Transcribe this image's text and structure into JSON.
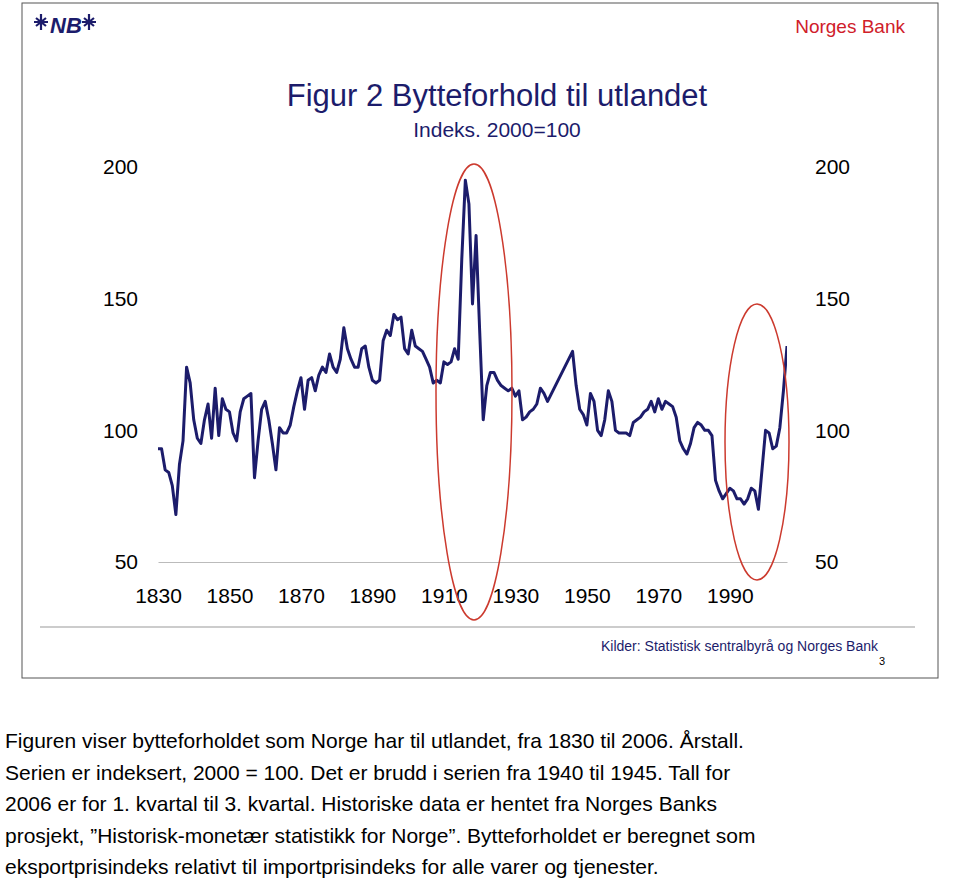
{
  "chart_data": {
    "type": "line",
    "logo": "NB",
    "publisher": "Norges Bank",
    "title": "Figur 2 Bytteforhold til utlandet",
    "subtitle": "Indeks. 2000=100",
    "source": "Kilder: Statistisk sentralbyrå og Norges Bank",
    "page_number": 3,
    "caption": [
      "Figuren viser bytteforholdet som Norge har til utlandet, fra 1830 til 2006. Årstall.",
      "Serien er indeksert, 2000 = 100. Det er brudd i serien fra 1940 til 1945. Tall for",
      "2006 er for 1. kvartal til 3. kvartal. Historiske data er hentet fra Norges Banks",
      "prosjekt, ”Historisk-monetær statistikk for Norge”. Bytteforholdet er beregnet som",
      "eksportprisindeks relativt til importprisindeks for alle varer og tjenester."
    ],
    "color": "#1c1c6b",
    "x": [
      1830,
      1831,
      1832,
      1833,
      1834,
      1835,
      1836,
      1837,
      1838,
      1839,
      1840,
      1841,
      1842,
      1843,
      1844,
      1845,
      1846,
      1847,
      1848,
      1849,
      1850,
      1851,
      1852,
      1853,
      1854,
      1855,
      1856,
      1857,
      1858,
      1859,
      1860,
      1861,
      1862,
      1863,
      1864,
      1865,
      1866,
      1867,
      1868,
      1869,
      1870,
      1871,
      1872,
      1873,
      1874,
      1875,
      1876,
      1877,
      1878,
      1879,
      1880,
      1881,
      1882,
      1883,
      1884,
      1885,
      1886,
      1887,
      1888,
      1889,
      1890,
      1891,
      1892,
      1893,
      1894,
      1895,
      1896,
      1897,
      1898,
      1899,
      1900,
      1901,
      1902,
      1903,
      1904,
      1905,
      1906,
      1907,
      1908,
      1909,
      1910,
      1911,
      1912,
      1913,
      1914,
      1915,
      1916,
      1917,
      1918,
      1919,
      1920,
      1921,
      1922,
      1923,
      1924,
      1925,
      1926,
      1927,
      1928,
      1929,
      1930,
      1931,
      1932,
      1933,
      1934,
      1935,
      1936,
      1937,
      1938,
      1939,
      1946,
      1947,
      1948,
      1949,
      1950,
      1951,
      1952,
      1953,
      1954,
      1955,
      1956,
      1957,
      1958,
      1959,
      1960,
      1961,
      1962,
      1963,
      1964,
      1965,
      1966,
      1967,
      1968,
      1969,
      1970,
      1971,
      1972,
      1973,
      1974,
      1975,
      1976,
      1977,
      1978,
      1979,
      1980,
      1981,
      1982,
      1983,
      1984,
      1985,
      1986,
      1987,
      1988,
      1989,
      1990,
      1991,
      1992,
      1993,
      1994,
      1995,
      1996,
      1997,
      1998,
      1999,
      2000,
      2001,
      2002,
      2003,
      2004,
      2005,
      2006
    ],
    "values": [
      93,
      93,
      85,
      84,
      79,
      68,
      87,
      96,
      124,
      118,
      104,
      97,
      95,
      104,
      110,
      97,
      116,
      98,
      112,
      108,
      107,
      99,
      96,
      107,
      112,
      113,
      114,
      82,
      96,
      108,
      111,
      104,
      95,
      85,
      101,
      99,
      99,
      102,
      109,
      115,
      120,
      108,
      119,
      120,
      115,
      121,
      124,
      122,
      129,
      124,
      122,
      127,
      139,
      131,
      127,
      124,
      124,
      131,
      132,
      124,
      119,
      118,
      119,
      134,
      138,
      136,
      144,
      142,
      143,
      131,
      129,
      138,
      132,
      131,
      130,
      127,
      124,
      118,
      119,
      118,
      126,
      125,
      126,
      131,
      127,
      165,
      195,
      186,
      148,
      174,
      138,
      104,
      117,
      122,
      122,
      119,
      117,
      116,
      115,
      116,
      113,
      115,
      104,
      105,
      107,
      108,
      110,
      116,
      114,
      111,
      130,
      117,
      108,
      106,
      102,
      114,
      111,
      100,
      98,
      104,
      115,
      111,
      100,
      99,
      99,
      99,
      98,
      103,
      104,
      105,
      107,
      108,
      111,
      107,
      112,
      108,
      111,
      110,
      109,
      105,
      96,
      93,
      91,
      95,
      101,
      103,
      102,
      100,
      100,
      98,
      81,
      77,
      74,
      76,
      78,
      77,
      74,
      74,
      72,
      74,
      78,
      77,
      70,
      85,
      100,
      99,
      93,
      94,
      101,
      115,
      132
    ],
    "xlim": [
      1830,
      2006
    ],
    "xticks": [
      1830,
      1850,
      1870,
      1890,
      1910,
      1930,
      1950,
      1970,
      1990
    ],
    "ylim": [
      50,
      200
    ],
    "yticks": [
      50,
      100,
      150,
      200
    ],
    "y2lim": [
      50,
      200
    ],
    "y2ticks": [
      50,
      100,
      150,
      200
    ],
    "grid": false
  }
}
